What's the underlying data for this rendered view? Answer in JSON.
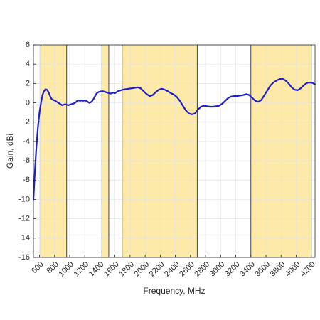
{
  "chart_data": {
    "type": "line",
    "xlabel": "Frequency, MHz",
    "ylabel": "Gain, dBi",
    "xlim": [
      520,
      4250
    ],
    "ylim": [
      -16,
      6
    ],
    "grid": true,
    "x_ticks": [
      600,
      800,
      1000,
      1200,
      1400,
      1600,
      1800,
      2000,
      2200,
      2400,
      2600,
      2800,
      3000,
      3200,
      3400,
      3600,
      3800,
      4000,
      4200
    ],
    "y_ticks": [
      -16,
      -14,
      -12,
      -10,
      -8,
      -6,
      -4,
      -2,
      0,
      2,
      4,
      6
    ],
    "bands": [
      [
        617,
        960
      ],
      [
        1427,
        1518
      ],
      [
        1695,
        2690
      ],
      [
        3400,
        4200
      ]
    ],
    "colors": {
      "line": "#1f1fc8",
      "band": "#fde9a8",
      "grid": "#e3e3e3",
      "axis": "#262626"
    },
    "series": [
      {
        "x": [
          520,
          540,
          560,
          580,
          600,
          620,
          640,
          660,
          680,
          700,
          720,
          740,
          760,
          780,
          800,
          820,
          840,
          860,
          880,
          900,
          920,
          940,
          960,
          980,
          1000,
          1020,
          1040,
          1060,
          1080,
          1100,
          1120,
          1140,
          1160,
          1180,
          1200,
          1220,
          1240,
          1260,
          1280,
          1300,
          1320,
          1340,
          1360,
          1380,
          1400,
          1420,
          1440,
          1460,
          1480,
          1500,
          1520,
          1540,
          1560,
          1580,
          1600,
          1620,
          1640,
          1660,
          1680,
          1700,
          1740,
          1780,
          1820,
          1860,
          1900,
          1940,
          1980,
          2020,
          2060,
          2100,
          2140,
          2180,
          2220,
          2260,
          2300,
          2340,
          2380,
          2420,
          2460,
          2500,
          2540,
          2580,
          2620,
          2660,
          2700,
          2740,
          2780,
          2820,
          2860,
          2900,
          2940,
          2980,
          3020,
          3060,
          3100,
          3140,
          3180,
          3220,
          3260,
          3300,
          3340,
          3380,
          3420,
          3460,
          3500,
          3540,
          3580,
          3620,
          3660,
          3700,
          3740,
          3780,
          3820,
          3860,
          3900,
          3940,
          3980,
          4020,
          4060,
          4100,
          4140,
          4180,
          4220,
          4250
        ],
        "y": [
          -10.0,
          -7.0,
          -4.5,
          -2.5,
          -1.0,
          0.0,
          0.8,
          1.2,
          1.4,
          1.35,
          1.1,
          0.7,
          0.4,
          0.3,
          0.25,
          0.15,
          0.05,
          -0.05,
          -0.15,
          -0.25,
          -0.2,
          -0.15,
          -0.2,
          -0.25,
          -0.2,
          -0.15,
          -0.1,
          -0.05,
          0.05,
          0.2,
          0.25,
          0.2,
          0.25,
          0.2,
          0.25,
          0.2,
          0.1,
          0.0,
          0.05,
          0.2,
          0.45,
          0.75,
          1.0,
          1.1,
          1.15,
          1.2,
          1.2,
          1.15,
          1.1,
          1.05,
          1.0,
          0.95,
          1.0,
          1.05,
          1.0,
          1.1,
          1.2,
          1.25,
          1.3,
          1.35,
          1.4,
          1.45,
          1.5,
          1.55,
          1.6,
          1.5,
          1.2,
          0.9,
          0.7,
          0.8,
          1.1,
          1.35,
          1.45,
          1.35,
          1.2,
          1.0,
          0.85,
          0.6,
          0.2,
          -0.3,
          -0.8,
          -1.1,
          -1.2,
          -1.1,
          -0.7,
          -0.4,
          -0.3,
          -0.35,
          -0.4,
          -0.4,
          -0.35,
          -0.3,
          -0.1,
          0.2,
          0.5,
          0.65,
          0.7,
          0.7,
          0.75,
          0.8,
          0.9,
          0.8,
          0.5,
          0.2,
          0.1,
          0.3,
          0.8,
          1.3,
          1.8,
          2.1,
          2.3,
          2.45,
          2.5,
          2.3,
          2.0,
          1.6,
          1.35,
          1.3,
          1.5,
          1.8,
          2.05,
          2.1,
          2.05,
          1.9
        ]
      }
    ]
  }
}
